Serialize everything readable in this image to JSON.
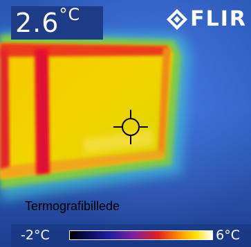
{
  "header": {
    "temperature_value": "2.6",
    "temperature_unit": "°C",
    "brand_text": "FLIR",
    "brand_logo_icon": "flir-diamond-logo-icon"
  },
  "caption": {
    "text": "Termografibillede"
  },
  "scale": {
    "min_label": "-2°C",
    "max_label": "6°C",
    "palette": [
      "#000000",
      "#0a0a5a",
      "#2020a0",
      "#8020a0",
      "#e02020",
      "#ff8a00",
      "#ffe000",
      "#ffffff"
    ]
  },
  "spot_meter": {
    "icon": "crosshair-icon"
  },
  "colors": {
    "background_cold": "#2b58b6",
    "window_warm": "#f2d000",
    "frame_hot": "#e8182c",
    "transition_green": "#7fcf3a"
  }
}
